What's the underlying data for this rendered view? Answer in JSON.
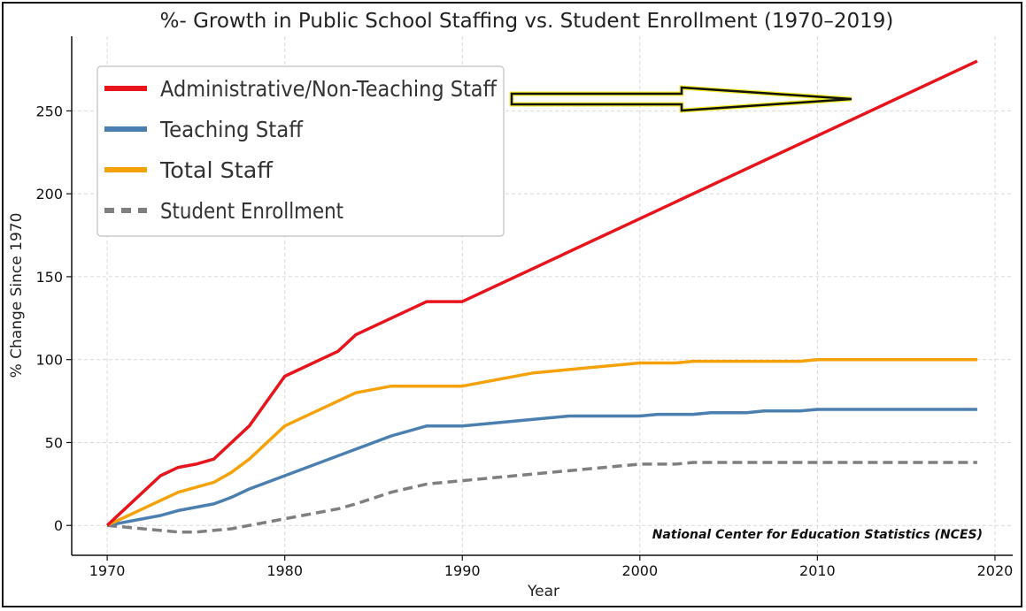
{
  "chart_data": {
    "type": "line",
    "title": "%- Growth in Public School Staffing vs. Student Enrollment (1970–2019)",
    "xlabel": "Year",
    "ylabel": "% Change Since 1970",
    "xlim": [
      1968,
      2021
    ],
    "ylim": [
      -18,
      295
    ],
    "xticks": [
      1970,
      1980,
      1990,
      2000,
      2010,
      2020
    ],
    "yticks": [
      0,
      50,
      100,
      150,
      200,
      250
    ],
    "grid": true,
    "legend_position": "top-left",
    "source_note": "National Center for Education Statistics (NCES)",
    "series": [
      {
        "name": "Administrative/Non-Teaching Staff",
        "color": "#e8141c",
        "style": "solid",
        "x": [
          1970,
          1973,
          1974,
          1975,
          1976,
          1978,
          1980,
          1983,
          1984,
          1988,
          1990,
          2019
        ],
        "y": [
          0,
          30,
          35,
          37,
          40,
          60,
          90,
          105,
          115,
          135,
          135,
          280
        ]
      },
      {
        "name": "Teaching Staff",
        "color": "#4a7fb0",
        "style": "solid",
        "x": [
          1970,
          1973,
          1974,
          1976,
          1977,
          1978,
          1980,
          1986,
          1988,
          1990,
          1996,
          2000,
          2001,
          2003,
          2004,
          2006,
          2007,
          2009,
          2010,
          2019
        ],
        "y": [
          0,
          6,
          9,
          13,
          17,
          22,
          30,
          54,
          60,
          60,
          66,
          66,
          67,
          67,
          68,
          68,
          69,
          69,
          70,
          70
        ]
      },
      {
        "name": "Total Staff",
        "color": "#f5a20a",
        "style": "solid",
        "x": [
          1970,
          1974,
          1976,
          1977,
          1978,
          1980,
          1984,
          1986,
          1990,
          1994,
          2000,
          2002,
          2003,
          2009,
          2010,
          2019
        ],
        "y": [
          0,
          20,
          26,
          32,
          40,
          60,
          80,
          84,
          84,
          92,
          98,
          98,
          99,
          99,
          100,
          100
        ]
      },
      {
        "name": "Student Enrollment",
        "color": "#7f7f7f",
        "style": "dashed",
        "x": [
          1970,
          1972,
          1974,
          1975,
          1977,
          1978,
          1980,
          1983,
          1984,
          1986,
          1988,
          1990,
          1995,
          2000,
          2002,
          2003,
          2019
        ],
        "y": [
          0,
          -2,
          -4,
          -4,
          -2,
          0,
          4,
          10,
          13,
          20,
          25,
          27,
          32,
          37,
          37,
          38,
          38
        ]
      }
    ]
  }
}
